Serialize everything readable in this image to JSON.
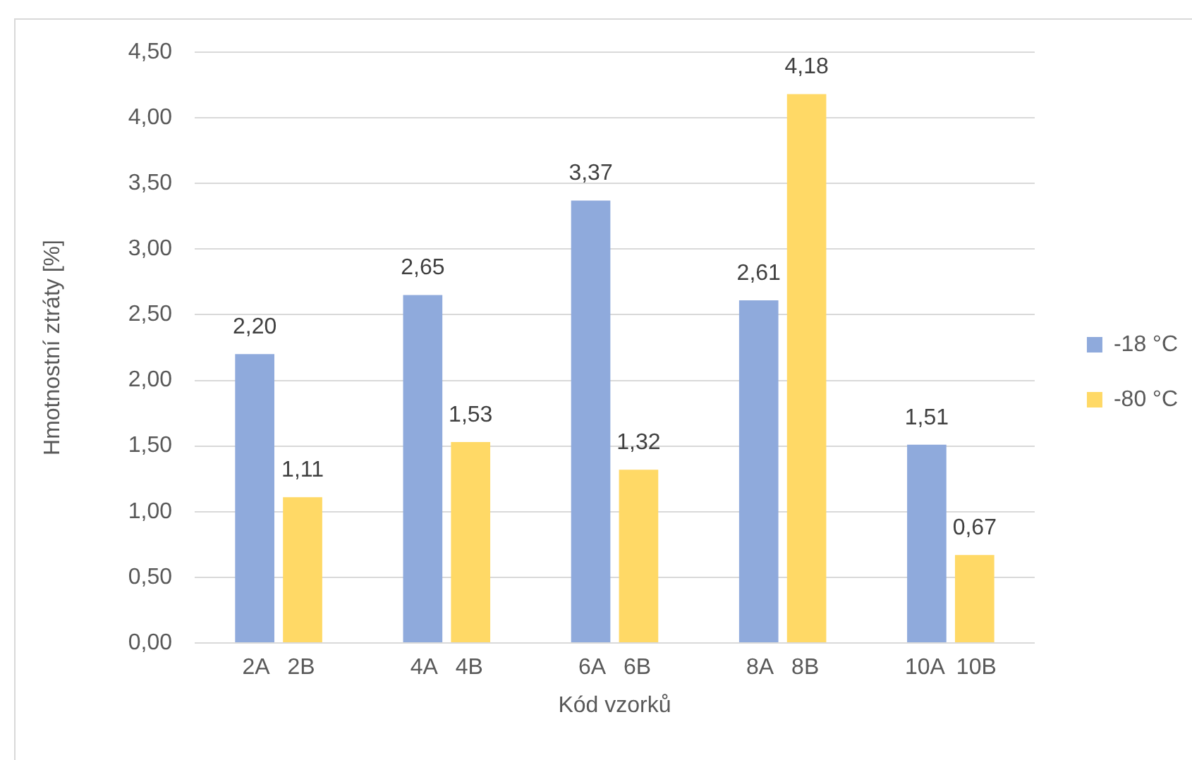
{
  "chart_data": {
    "type": "bar",
    "xlabel": "Kód vzorků",
    "ylabel": "Hmotnostní ztráty [%]",
    "categories": [
      "2A   2B",
      "4A   4B",
      "6A   6B",
      "8A   8B",
      "10A  10B"
    ],
    "series": [
      {
        "name": "-18 °C",
        "color": "#8faadc",
        "values": [
          2.2,
          2.65,
          3.37,
          2.61,
          1.51
        ],
        "value_labels": [
          "2,20",
          "2,65",
          "3,37",
          "2,61",
          "1,51"
        ]
      },
      {
        "name": "-80 °C",
        "color": "#ffd966",
        "values": [
          1.11,
          1.53,
          1.32,
          4.18,
          0.67
        ],
        "value_labels": [
          "1,11",
          "1,53",
          "1,32",
          "4,18",
          "0,67"
        ]
      }
    ],
    "ylim": [
      0,
      4.5
    ],
    "yticks": [
      {
        "value": 0,
        "label": "0,00"
      },
      {
        "value": 0.5,
        "label": "0,50"
      },
      {
        "value": 1,
        "label": "1,00"
      },
      {
        "value": 1.5,
        "label": "1,50"
      },
      {
        "value": 2,
        "label": "2,00"
      },
      {
        "value": 2.5,
        "label": "2,50"
      },
      {
        "value": 3,
        "label": "3,00"
      },
      {
        "value": 3.5,
        "label": "3,50"
      },
      {
        "value": 4,
        "label": "4,00"
      },
      {
        "value": 4.5,
        "label": "4,50"
      }
    ],
    "grid": "y",
    "legend": "right"
  }
}
